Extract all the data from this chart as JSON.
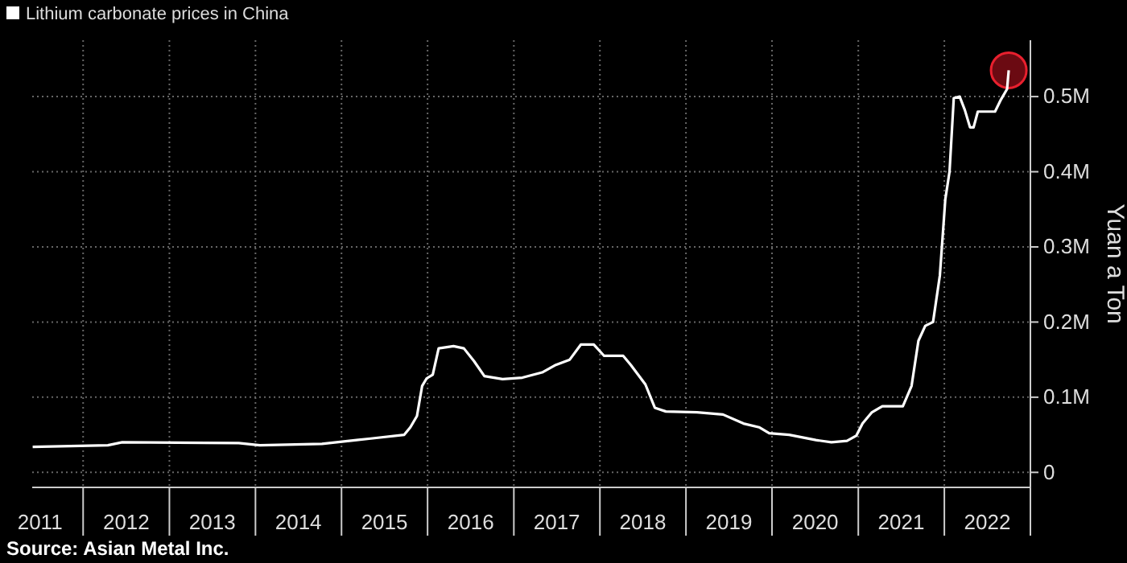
{
  "chart_data": {
    "type": "line",
    "x": [
      "2011-06-01",
      "2012-04-15",
      "2012-06-15",
      "2013-10-22",
      "2014-01-20",
      "2014-10-10",
      "2015-03-06",
      "2015-05-05",
      "2015-09-24",
      "2015-10-20",
      "2015-11-17",
      "2015-12-09",
      "2015-12-28",
      "2016-01-23",
      "2016-02-17",
      "2016-04-20",
      "2016-06-03",
      "2016-07-16",
      "2016-08-29",
      "2016-11-14",
      "2017-02-06",
      "2017-05-01",
      "2017-06-28",
      "2017-08-26",
      "2017-10-12",
      "2017-12-06",
      "2018-01-19",
      "2018-04-10",
      "2018-05-12",
      "2018-07-13",
      "2018-08-22",
      "2018-10-08",
      "2019-02-17",
      "2019-06-07",
      "2019-09-02",
      "2019-11-07",
      "2019-12-20",
      "2020-03-14",
      "2020-07-05",
      "2020-09-09",
      "2020-11-14",
      "2020-12-24",
      "2021-01-19",
      "2021-02-28",
      "2021-04-13",
      "2021-07-09",
      "2021-08-15",
      "2021-09-13",
      "2021-10-12",
      "2021-11-14",
      "2021-12-13",
      "2022-01-05",
      "2022-01-23",
      "2022-02-10",
      "2022-03-07",
      "2022-03-29",
      "2022-04-20",
      "2022-05-05",
      "2022-05-23",
      "2022-08-04",
      "2022-08-29",
      "2022-09-24",
      "2022-10-01"
    ],
    "series": [
      {
        "name": "Lithium carbonate prices in China",
        "color": "#ffffff",
        "values": [
          34000,
          36000,
          40000,
          39000,
          36000,
          38000,
          43000,
          45000,
          50000,
          60000,
          75000,
          115000,
          125000,
          130000,
          165000,
          168000,
          165000,
          148000,
          128000,
          124000,
          126000,
          133000,
          143000,
          150000,
          170000,
          170000,
          155000,
          155000,
          143000,
          117000,
          86000,
          81000,
          80000,
          77000,
          65000,
          60000,
          52000,
          50000,
          43000,
          40000,
          42000,
          49000,
          65000,
          80000,
          88000,
          88000,
          115000,
          175000,
          195000,
          200000,
          262000,
          363000,
          400000,
          498000,
          500000,
          482000,
          459000,
          459000,
          480000,
          480000,
          496000,
          510000,
          535000
        ]
      }
    ],
    "ylabel": "Yuan a Ton",
    "annotations": [
      "Source: Asian Metal Inc."
    ],
    "xlim": [
      "2011-05-30",
      "2023-01-01"
    ],
    "xticks": [
      {
        "value": "2011-07-02",
        "label": "2011"
      },
      {
        "value": "2012-01-01",
        "label": null
      },
      {
        "value": "2012-07-02",
        "label": "2012"
      },
      {
        "value": "2013-01-01",
        "label": null
      },
      {
        "value": "2013-07-02",
        "label": "2013"
      },
      {
        "value": "2014-01-01",
        "label": null
      },
      {
        "value": "2014-07-02",
        "label": "2014"
      },
      {
        "value": "2015-01-01",
        "label": null
      },
      {
        "value": "2015-07-02",
        "label": "2015"
      },
      {
        "value": "2016-01-01",
        "label": null
      },
      {
        "value": "2016-07-02",
        "label": "2016"
      },
      {
        "value": "2017-01-01",
        "label": null
      },
      {
        "value": "2017-07-02",
        "label": "2017"
      },
      {
        "value": "2018-01-01",
        "label": null
      },
      {
        "value": "2018-07-02",
        "label": "2018"
      },
      {
        "value": "2019-01-01",
        "label": null
      },
      {
        "value": "2019-07-02",
        "label": "2019"
      },
      {
        "value": "2020-01-01",
        "label": null
      },
      {
        "value": "2020-07-02",
        "label": "2020"
      },
      {
        "value": "2021-01-01",
        "label": null
      },
      {
        "value": "2021-07-02",
        "label": "2021"
      },
      {
        "value": "2022-01-01",
        "label": null
      },
      {
        "value": "2022-07-02",
        "label": "2022"
      },
      {
        "value": "2023-01-01",
        "label": null
      }
    ],
    "ylim": [
      -20000,
      575000
    ],
    "yticks": [
      {
        "value": 0,
        "label": "0"
      },
      {
        "value": 100000,
        "label": "0.1M"
      },
      {
        "value": 200000,
        "label": "0.2M"
      },
      {
        "value": 300000,
        "label": "0.3M"
      },
      {
        "value": 400000,
        "label": "0.4M"
      },
      {
        "value": 500000,
        "label": "0.5M"
      }
    ],
    "grid": true,
    "legend": "top left",
    "marker": "none",
    "line_style": "solid"
  }
}
